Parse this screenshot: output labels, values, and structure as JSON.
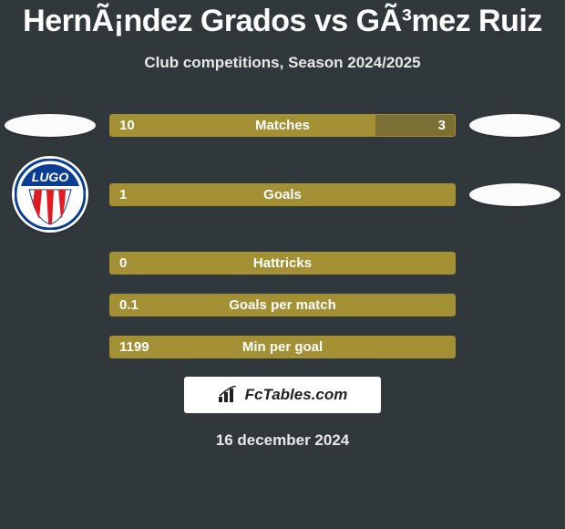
{
  "title": "HernÃ¡ndez Grados vs GÃ³mez Ruiz",
  "subtitle": "Club competitions, Season 2024/2025",
  "date": "16 december 2024",
  "logo_text": "FcTables.com",
  "colors": {
    "bg": "#31383c",
    "left_fill": "#a38f34",
    "right_fill": "#7c6f33",
    "ellipse": "#fbfbfb",
    "logo_box": "#ffffff",
    "club_ring": "#0b3e92",
    "club_stripe1": "#e11b22",
    "club_stripe2": "#ffffff"
  },
  "club_name": "LUGO",
  "bars": [
    {
      "label": "Matches",
      "left": "10",
      "right": "3",
      "left_pct": 76.9,
      "right_pct": 23.1
    },
    {
      "label": "Goals",
      "left": "1",
      "right": "",
      "left_pct": 100,
      "right_pct": 0
    },
    {
      "label": "Hattricks",
      "left": "0",
      "right": "",
      "left_pct": 100,
      "right_pct": 0
    },
    {
      "label": "Goals per match",
      "left": "0.1",
      "right": "",
      "left_pct": 100,
      "right_pct": 0
    },
    {
      "label": "Min per goal",
      "left": "1199",
      "right": "",
      "left_pct": 100,
      "right_pct": 0
    }
  ],
  "left_badges": [
    "ellipse",
    "club",
    "",
    "",
    ""
  ],
  "right_badges": [
    "ellipse",
    "ellipse",
    "",
    "",
    ""
  ]
}
